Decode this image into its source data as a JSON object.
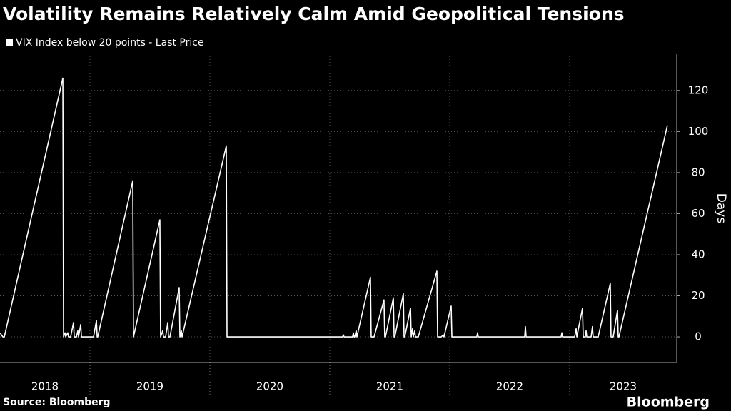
{
  "chart_data": {
    "type": "line",
    "title": "Volatility Remains Relatively Calm Amid Geopolitical Tensions",
    "ylabel": "Days",
    "source": "Source: Bloomberg",
    "logo": "Bloomberg",
    "x": [
      2018.25,
      2018.274,
      2018.286,
      2018.774,
      2018.78,
      2018.792,
      2018.798,
      2018.815,
      2018.821,
      2018.839,
      2018.863,
      2018.869,
      2018.887,
      2018.899,
      2018.905,
      2018.923,
      2018.929,
      2019.03,
      2019.054,
      2019.06,
      2019.065,
      2019.357,
      2019.363,
      2019.583,
      2019.589,
      2019.607,
      2019.613,
      2019.631,
      2019.649,
      2019.655,
      2019.667,
      2019.744,
      2019.75,
      2019.762,
      2019.768,
      2020.137,
      2020.143,
      2021.107,
      2021.113,
      2021.119,
      2021.19,
      2021.196,
      2021.202,
      2021.208,
      2021.22,
      2021.226,
      2021.339,
      2021.345,
      2021.369,
      2021.452,
      2021.458,
      2021.464,
      2021.53,
      2021.536,
      2021.542,
      2021.613,
      2021.619,
      2021.625,
      2021.673,
      2021.679,
      2021.69,
      2021.696,
      2021.708,
      2021.714,
      2021.726,
      2021.738,
      2021.893,
      2021.899,
      2021.929,
      2021.946,
      2021.952,
      2022.012,
      2022.018,
      2022.226,
      2022.232,
      2022.238,
      2022.625,
      2022.631,
      2022.637,
      2022.929,
      2022.935,
      2022.94,
      2023.042,
      2023.054,
      2023.06,
      2023.107,
      2023.113,
      2023.131,
      2023.137,
      2023.143,
      2023.179,
      2023.19,
      2023.196,
      2023.238,
      2023.339,
      2023.345,
      2023.363,
      2023.399,
      2023.405,
      2023.411,
      2023.815
    ],
    "series": [
      {
        "name": "VIX Index below 20 points - Last Price",
        "color": "#ffffff",
        "values": [
          2,
          0,
          0,
          126,
          0,
          2,
          0,
          2,
          0,
          0,
          7,
          0,
          0,
          3,
          0,
          6,
          0,
          0,
          8,
          0,
          0,
          76,
          0,
          57,
          0,
          3,
          0,
          0,
          7,
          0,
          0,
          24,
          0,
          3,
          0,
          93,
          0,
          0,
          1,
          0,
          0,
          2,
          0,
          0,
          3,
          0,
          29,
          0,
          0,
          18,
          0,
          0,
          19,
          0,
          0,
          21,
          0,
          0,
          14,
          0,
          4,
          0,
          3,
          0,
          0,
          0,
          32,
          0,
          0,
          1,
          0,
          15,
          0,
          0,
          2,
          0,
          0,
          5,
          0,
          0,
          2,
          0,
          0,
          4,
          0,
          14,
          0,
          0,
          3,
          0,
          0,
          5,
          0,
          0,
          26,
          0,
          0,
          13,
          0,
          0,
          103
        ]
      }
    ],
    "xlim": [
      2018.25,
      2023.893
    ],
    "xticks": [
      {
        "value": 2018.5,
        "label": "2018"
      },
      {
        "value": 2019.5,
        "label": "2019"
      },
      {
        "value": 2020.5,
        "label": "2020"
      },
      {
        "value": 2021.5,
        "label": "2021"
      },
      {
        "value": 2022.5,
        "label": "2022"
      },
      {
        "value": 2023.5,
        "label": "2023"
      }
    ],
    "ylim": [
      -12.5,
      138
    ],
    "yticks": [
      0,
      20,
      40,
      60,
      80,
      100,
      120
    ],
    "grid": true
  }
}
